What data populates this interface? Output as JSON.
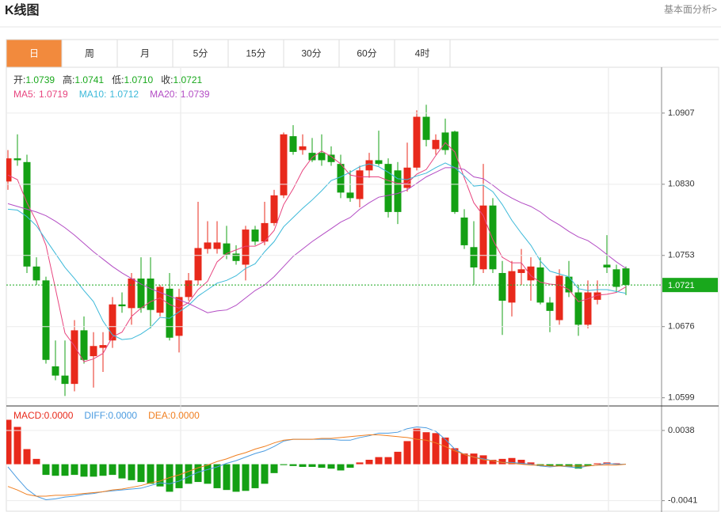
{
  "header": {
    "title": "K线图",
    "link": "基本面分析>"
  },
  "tabs": [
    "日",
    "周",
    "月",
    "5分",
    "15分",
    "30分",
    "60分",
    "4时"
  ],
  "active_tab": "日",
  "chart_data": [
    {
      "type": "candlestick",
      "up_color": "#e8291b",
      "down_color": "#14a014",
      "ohlc_info": [
        {
          "label": "开:",
          "value": "1.0739"
        },
        {
          "label": "高:",
          "value": "1.0741"
        },
        {
          "label": "低:",
          "value": "1.0710"
        },
        {
          "label": "收:",
          "value": "1.0721"
        }
      ],
      "open": [
        1.0833,
        1.0858,
        1.0854,
        1.0741,
        1.0726,
        1.0633,
        1.0623,
        1.0614,
        1.0672,
        1.0644,
        1.0653,
        1.0661,
        1.07,
        1.0696,
        1.0728,
        1.0728,
        1.0691,
        1.0717,
        1.0666,
        1.0708,
        1.0726,
        1.076,
        1.076,
        1.0766,
        1.0755,
        1.0743,
        1.0781,
        1.0768,
        1.0788,
        1.0818,
        1.0882,
        1.0867,
        1.0864,
        1.0864,
        1.0862,
        1.0852,
        1.0821,
        1.0814,
        1.0845,
        1.0856,
        1.0852,
        1.0845,
        1.0826,
        1.0848,
        1.0903,
        1.0868,
        1.0886,
        1.0887,
        1.0794,
        1.0762,
        1.0738,
        1.0807,
        1.0734,
        1.0702,
        1.0734,
        1.0726,
        1.074,
        1.0702,
        1.0683,
        1.073,
        1.0713,
        1.0678,
        1.0705,
        1.0743,
        1.0738,
        1.0739
      ],
      "high": [
        1.0867,
        1.0884,
        1.0862,
        1.0751,
        1.073,
        1.0661,
        1.0661,
        1.0683,
        1.0687,
        1.067,
        1.067,
        1.0708,
        1.0713,
        1.0734,
        1.0751,
        1.0751,
        1.0721,
        1.0734,
        1.0717,
        1.0734,
        1.0811,
        1.079,
        1.079,
        1.0785,
        1.0764,
        1.0785,
        1.0785,
        1.0811,
        1.0824,
        1.0886,
        1.0894,
        1.0884,
        1.088,
        1.0884,
        1.0871,
        1.0862,
        1.0845,
        1.085,
        1.0864,
        1.0888,
        1.0858,
        1.0854,
        1.0875,
        1.091,
        1.0916,
        1.0884,
        1.0901,
        1.0888,
        1.0803,
        1.079,
        1.0852,
        1.0815,
        1.0747,
        1.0747,
        1.076,
        1.0751,
        1.0751,
        1.0708,
        1.0738,
        1.0747,
        1.0721,
        1.0726,
        1.0726,
        1.0775,
        1.0743,
        1.0741
      ],
      "low": [
        1.0824,
        1.085,
        1.0734,
        1.0721,
        1.0636,
        1.0618,
        1.0601,
        1.0606,
        1.0636,
        1.061,
        1.0627,
        1.0653,
        1.0691,
        1.0678,
        1.0691,
        1.0674,
        1.0687,
        1.0661,
        1.0648,
        1.0704,
        1.0721,
        1.0755,
        1.0755,
        1.0749,
        1.0743,
        1.0726,
        1.0764,
        1.0764,
        1.0785,
        1.0815,
        1.0862,
        1.0862,
        1.0854,
        1.085,
        1.085,
        1.0815,
        1.0811,
        1.0805,
        1.0837,
        1.085,
        1.0794,
        1.0787,
        1.0822,
        1.0845,
        1.0871,
        1.0862,
        1.0862,
        1.0798,
        1.076,
        1.0721,
        1.0734,
        1.0734,
        1.0667,
        1.0687,
        1.0721,
        1.0704,
        1.07,
        1.067,
        1.0678,
        1.0708,
        1.0666,
        1.0674,
        1.07,
        1.0734,
        1.0713,
        1.071
      ],
      "close": [
        1.0858,
        1.0856,
        1.0741,
        1.0726,
        1.064,
        1.0623,
        1.0614,
        1.0672,
        1.064,
        1.0655,
        1.0656,
        1.07,
        1.0698,
        1.0728,
        1.0696,
        1.0694,
        1.0719,
        1.0664,
        1.0708,
        1.0726,
        1.0761,
        1.0767,
        1.0767,
        1.0754,
        1.0747,
        1.0781,
        1.0768,
        1.0788,
        1.0818,
        1.0884,
        1.0865,
        1.0871,
        1.0856,
        1.0856,
        1.0854,
        1.0821,
        1.0815,
        1.0845,
        1.0856,
        1.0852,
        1.08,
        1.08,
        1.0848,
        1.0903,
        1.0878,
        1.0878,
        1.0867,
        1.08,
        1.0764,
        1.074,
        1.0807,
        1.0738,
        1.0704,
        1.0736,
        1.0738,
        1.0741,
        1.0702,
        1.0693,
        1.0731,
        1.0713,
        1.0678,
        1.0713,
        1.0713,
        1.074,
        1.0719,
        1.0721
      ],
      "series": [
        {
          "name": "MA5:",
          "current": "1.0719",
          "color": "#e8457f",
          "values": [
            1.084,
            1.0835,
            1.081,
            1.079,
            1.0764,
            1.0717,
            1.0669,
            1.0655,
            1.0638,
            1.0641,
            1.0647,
            1.0665,
            1.067,
            1.0687,
            1.0696,
            1.0703,
            1.0707,
            1.07,
            1.0696,
            1.0702,
            1.0716,
            1.0725,
            1.0746,
            1.0755,
            1.0759,
            1.0763,
            1.0763,
            1.0768,
            1.078,
            1.0808,
            1.0825,
            1.0845,
            1.0859,
            1.0866,
            1.086,
            1.0852,
            1.084,
            1.0838,
            1.0838,
            1.0838,
            1.0834,
            1.0831,
            1.0831,
            1.0841,
            1.0846,
            1.0861,
            1.0875,
            1.0865,
            1.0837,
            1.081,
            1.0796,
            1.077,
            1.0751,
            1.0745,
            1.0745,
            1.0731,
            1.0724,
            1.0722,
            1.0721,
            1.0716,
            1.0703,
            1.0706,
            1.071,
            1.0711,
            1.0713,
            1.0719
          ]
        },
        {
          "name": "MA10:",
          "current": "1.0712",
          "color": "#3cb9d9",
          "values": [
            1.0803,
            1.0802,
            1.0795,
            1.0785,
            1.077,
            1.0755,
            1.074,
            1.0728,
            1.0715,
            1.0703,
            1.0682,
            1.0667,
            1.0662,
            1.0663,
            1.0668,
            1.0675,
            1.0686,
            1.0685,
            1.0692,
            1.0699,
            1.0709,
            1.0716,
            1.0723,
            1.0726,
            1.0731,
            1.0739,
            1.0744,
            1.0757,
            1.0768,
            1.0784,
            1.0794,
            1.0804,
            1.0813,
            1.0823,
            1.0834,
            1.0838,
            1.0843,
            1.0849,
            1.0852,
            1.0849,
            1.0843,
            1.0836,
            1.0835,
            1.0839,
            1.0842,
            1.0848,
            1.0853,
            1.0848,
            1.0839,
            1.0828,
            1.0829,
            1.0822,
            1.0808,
            1.0791,
            1.0777,
            1.0764,
            1.0747,
            1.0736,
            1.0733,
            1.073,
            1.0717,
            1.0715,
            1.0716,
            1.0716,
            1.0714,
            1.0712
          ]
        },
        {
          "name": "MA20:",
          "current": "1.0739",
          "color": "#b34cc4",
          "values": [
            1.0809,
            1.0806,
            1.0803,
            1.08,
            1.0796,
            1.079,
            1.0783,
            1.0775,
            1.0766,
            1.0757,
            1.0749,
            1.0741,
            1.0734,
            1.0728,
            1.0722,
            1.0717,
            1.0713,
            1.0709,
            1.0705,
            1.0701,
            1.0696,
            1.0691,
            1.0693,
            1.0694,
            1.0699,
            1.0707,
            1.0715,
            1.0721,
            1.073,
            1.0741,
            1.0752,
            1.076,
            1.0768,
            1.0775,
            1.0782,
            1.0789,
            1.0794,
            1.0803,
            1.081,
            1.0816,
            1.0818,
            1.082,
            1.0824,
            1.0831,
            1.0838,
            1.0843,
            1.0848,
            1.0848,
            1.0846,
            1.0838,
            1.0836,
            1.0829,
            1.0821,
            1.0815,
            1.081,
            1.0806,
            1.08,
            1.0792,
            1.0786,
            1.0779,
            1.0773,
            1.0769,
            1.0762,
            1.0754,
            1.0746,
            1.0739
          ]
        }
      ],
      "ylim": [
        1.0591,
        1.0954
      ],
      "yticks": [
        1.0907,
        {
          "value": 1.083,
          "label": "1.0830"
        },
        1.0753,
        1.0676,
        1.0599
      ],
      "last_price": 1.0721,
      "last_price_color": "#19a81c",
      "grid": true
    },
    {
      "type": "macd",
      "series": [
        {
          "name": "MACD:",
          "current": "0.0000",
          "kind": "histogram",
          "color": "#e8291b",
          "down_color": "#14a014",
          "values": [
            0.005,
            0.0042,
            0.0017,
            0.0006,
            -0.0012,
            -0.0013,
            -0.0013,
            -0.0012,
            -0.0014,
            -0.0014,
            -0.0013,
            -0.0012,
            -0.0016,
            -0.0018,
            -0.002,
            -0.0022,
            -0.0025,
            -0.0031,
            -0.0027,
            -0.0022,
            -0.002,
            -0.0022,
            -0.0027,
            -0.0029,
            -0.0031,
            -0.003,
            -0.0027,
            -0.0022,
            -0.001,
            -0.0001,
            -0.0002,
            -0.0003,
            -0.0003,
            -0.0004,
            -0.0005,
            -0.0007,
            -0.0004,
            0.0002,
            0.0005,
            0.0008,
            0.0008,
            0.0014,
            0.0026,
            0.004,
            0.0036,
            0.0035,
            0.003,
            0.0018,
            0.0012,
            0.0012,
            0.001,
            0.0005,
            0.0006,
            0.0007,
            0.0005,
            0.0002,
            -0.0002,
            -0.0002,
            -0.0002,
            -0.0003,
            -0.0005,
            -0.0002,
            0.0001,
            0.0002,
            0.0001,
            0
          ]
        },
        {
          "name": "DIFF:",
          "current": "0.0000",
          "color": "#4a9be0",
          "values": [
            -0.0003,
            -0.0016,
            -0.0028,
            -0.0036,
            -0.004,
            -0.0039,
            -0.0037,
            -0.0036,
            -0.0034,
            -0.0033,
            -0.0031,
            -0.003,
            -0.0029,
            -0.0028,
            -0.0027,
            -0.0024,
            -0.0021,
            -0.0022,
            -0.0019,
            -0.0014,
            -0.0009,
            -0.0006,
            -0.0003,
            0.0001,
            0.0004,
            0.0008,
            0.0012,
            0.0015,
            0.002,
            0.0026,
            0.0028,
            0.0028,
            0.0028,
            0.0028,
            0.0028,
            0.0027,
            0.0027,
            0.003,
            0.0032,
            0.0035,
            0.0035,
            0.0036,
            0.004,
            0.0042,
            0.0041,
            0.0037,
            0.0028,
            0.0017,
            0.0011,
            0.0008,
            0.0006,
            0.0004,
            0.0002,
            0.0002,
            0.0001,
            0,
            -0.0002,
            -0.0003,
            -0.0002,
            -0.0003,
            -0.0004,
            -0.0002,
            -0.0001,
            0.0001,
            0,
            0
          ]
        },
        {
          "name": "DEA:",
          "current": "0.0000",
          "color": "#f07f20",
          "values": [
            -0.0025,
            -0.0029,
            -0.0034,
            -0.0036,
            -0.0036,
            -0.0035,
            -0.0035,
            -0.0034,
            -0.0033,
            -0.0032,
            -0.0031,
            -0.0029,
            -0.0028,
            -0.0026,
            -0.0024,
            -0.0021,
            -0.0019,
            -0.0015,
            -0.0012,
            -0.0008,
            -0.0004,
            -0.0001,
            0.0003,
            0.0006,
            0.001,
            0.0013,
            0.0017,
            0.002,
            0.0024,
            0.0027,
            0.0028,
            0.0028,
            0.0028,
            0.0029,
            0.0029,
            0.003,
            0.0031,
            0.0032,
            0.0033,
            0.0033,
            0.0032,
            0.0031,
            0.003,
            0.0028,
            0.0027,
            0.0024,
            0.002,
            0.0015,
            0.0011,
            0.0008,
            0.0005,
            0.0004,
            0.0002,
            0.0001,
            0,
            -0.0001,
            -0.0001,
            -0.0002,
            -0.0002,
            -0.0002,
            -0.0002,
            -0.0002,
            -0.0001,
            -0.0001,
            -0.0001,
            0
          ]
        }
      ],
      "ylim": [
        -0.0052,
        0.0062
      ],
      "yticks": [
        0.0038,
        -0.0041
      ],
      "grid": true
    }
  ]
}
